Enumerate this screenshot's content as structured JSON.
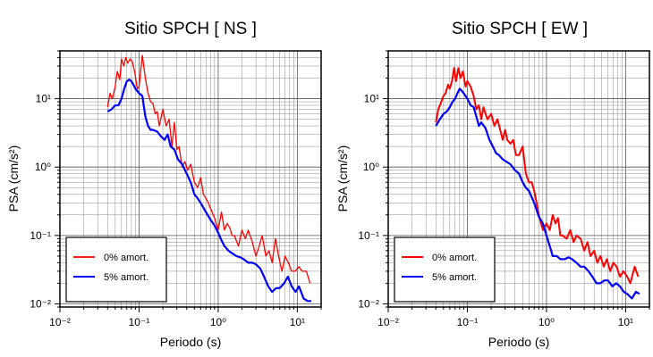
{
  "chart_data": [
    {
      "type": "line",
      "title": "Sitio SPCH [ NS ]",
      "xlabel": "Periodo (s)",
      "ylabel": "PSA (cm/s²)",
      "xscale": "log",
      "yscale": "log",
      "xlim": [
        0.01,
        20
      ],
      "ylim": [
        0.009,
        50
      ],
      "grid": true,
      "legend_position": "bottom-left",
      "x_ticks": [
        "10⁻²",
        "10⁻¹",
        "10⁰",
        "10¹"
      ],
      "y_ticks": [
        "10⁻²",
        "10⁻¹",
        "10⁰",
        "10¹"
      ],
      "series": [
        {
          "name": "0% amort.",
          "color": "#ff0000",
          "x": [
            0.04,
            0.043,
            0.046,
            0.05,
            0.053,
            0.057,
            0.06,
            0.064,
            0.068,
            0.072,
            0.077,
            0.082,
            0.088,
            0.095,
            0.1,
            0.11,
            0.12,
            0.13,
            0.14,
            0.15,
            0.16,
            0.17,
            0.18,
            0.2,
            0.22,
            0.24,
            0.26,
            0.28,
            0.3,
            0.32,
            0.35,
            0.38,
            0.41,
            0.45,
            0.5,
            0.55,
            0.6,
            0.65,
            0.7,
            0.75,
            0.8,
            0.9,
            1.0,
            1.1,
            1.2,
            1.3,
            1.4,
            1.5,
            1.6,
            1.8,
            2.0,
            2.2,
            2.4,
            2.7,
            3.0,
            3.3,
            3.6,
            4.0,
            4.4,
            4.8,
            5.3,
            5.8,
            6.4,
            7.0,
            7.7,
            8.5,
            9.4,
            10.5,
            11.5,
            13.0,
            14.5
          ],
          "y": [
            7.5,
            12,
            10,
            15,
            25,
            19,
            38,
            30,
            40,
            33,
            38,
            35,
            25,
            14,
            15,
            43,
            20,
            12,
            9,
            8.5,
            6,
            6.5,
            4,
            7,
            4,
            5,
            2,
            4.5,
            1.8,
            2,
            1,
            1.2,
            0.9,
            1.1,
            0.6,
            0.5,
            0.7,
            0.4,
            0.35,
            0.3,
            0.25,
            0.18,
            0.12,
            0.22,
            0.12,
            0.15,
            0.13,
            0.1,
            0.1,
            0.07,
            0.12,
            0.09,
            0.12,
            0.08,
            0.05,
            0.07,
            0.1,
            0.05,
            0.06,
            0.04,
            0.09,
            0.05,
            0.03,
            0.05,
            0.04,
            0.03,
            0.03,
            0.035,
            0.03,
            0.03,
            0.02
          ]
        },
        {
          "name": "5% amort.",
          "color": "#0000ff",
          "x": [
            0.04,
            0.045,
            0.05,
            0.055,
            0.06,
            0.065,
            0.07,
            0.075,
            0.08,
            0.085,
            0.09,
            0.1,
            0.11,
            0.12,
            0.13,
            0.14,
            0.15,
            0.17,
            0.19,
            0.21,
            0.23,
            0.25,
            0.28,
            0.31,
            0.35,
            0.4,
            0.45,
            0.5,
            0.55,
            0.6,
            0.7,
            0.8,
            0.9,
            1.0,
            1.1,
            1.2,
            1.35,
            1.5,
            1.7,
            1.9,
            2.1,
            2.4,
            2.7,
            3.0,
            3.4,
            3.8,
            4.3,
            4.8,
            5.4,
            6.0,
            6.8,
            7.6,
            8.5,
            9.5,
            10.5,
            12.0,
            13.5,
            15.0
          ],
          "y": [
            6.5,
            7,
            8,
            8,
            10,
            14,
            18,
            19,
            18,
            16,
            14,
            12,
            11,
            5.5,
            4,
            3.5,
            3.5,
            3.3,
            2.8,
            2.5,
            3,
            2,
            1.8,
            1.3,
            1.1,
            0.8,
            0.6,
            0.4,
            0.35,
            0.3,
            0.22,
            0.17,
            0.14,
            0.11,
            0.085,
            0.07,
            0.06,
            0.055,
            0.05,
            0.048,
            0.045,
            0.04,
            0.04,
            0.038,
            0.033,
            0.025,
            0.018,
            0.015,
            0.017,
            0.017,
            0.02,
            0.025,
            0.018,
            0.015,
            0.018,
            0.012,
            0.011,
            0.011
          ]
        }
      ]
    },
    {
      "type": "line",
      "title": "Sitio SPCH [ EW ]",
      "xlabel": "Periodo (s)",
      "ylabel": "PSA (cm/s²)",
      "xscale": "log",
      "yscale": "log",
      "xlim": [
        0.01,
        20
      ],
      "ylim": [
        0.009,
        50
      ],
      "grid": true,
      "legend_position": "bottom-left",
      "x_ticks": [
        "10⁻²",
        "10⁻¹",
        "10⁰",
        "10¹"
      ],
      "y_ticks": [
        "10⁻²",
        "10⁻¹",
        "10⁰",
        "10¹"
      ],
      "series": [
        {
          "name": "0% amort.",
          "color": "#ff0000",
          "x": [
            0.04,
            0.043,
            0.046,
            0.05,
            0.053,
            0.057,
            0.06,
            0.064,
            0.068,
            0.072,
            0.077,
            0.082,
            0.088,
            0.095,
            0.1,
            0.11,
            0.12,
            0.13,
            0.14,
            0.15,
            0.16,
            0.17,
            0.18,
            0.2,
            0.22,
            0.24,
            0.26,
            0.28,
            0.3,
            0.32,
            0.35,
            0.38,
            0.41,
            0.45,
            0.5,
            0.55,
            0.6,
            0.65,
            0.7,
            0.75,
            0.8,
            0.9,
            1.0,
            1.1,
            1.2,
            1.3,
            1.4,
            1.5,
            1.6,
            1.8,
            2.0,
            2.2,
            2.4,
            2.7,
            3.0,
            3.3,
            3.6,
            4.0,
            4.4,
            4.8,
            5.3,
            5.8,
            6.4,
            7.0,
            7.7,
            8.5,
            9.4,
            10.5,
            11.5,
            13.0,
            14.5
          ],
          "y": [
            4.5,
            7,
            8.5,
            11,
            12,
            16,
            14,
            18,
            28,
            18,
            28,
            20,
            25,
            15,
            18,
            15,
            11,
            7,
            8,
            5,
            7.5,
            6,
            5,
            6,
            4,
            5,
            3.5,
            2.5,
            3.5,
            2.5,
            2.2,
            2.5,
            1.5,
            1.5,
            2,
            0.8,
            0.6,
            0.6,
            0.45,
            0.3,
            0.2,
            0.12,
            0.15,
            0.12,
            0.2,
            0.15,
            0.18,
            0.1,
            0.1,
            0.09,
            0.12,
            0.08,
            0.1,
            0.09,
            0.06,
            0.08,
            0.05,
            0.06,
            0.04,
            0.05,
            0.035,
            0.045,
            0.03,
            0.04,
            0.035,
            0.025,
            0.03,
            0.025,
            0.02,
            0.035,
            0.025
          ]
        },
        {
          "name": "5% amort.",
          "color": "#0000ff",
          "x": [
            0.04,
            0.045,
            0.05,
            0.055,
            0.06,
            0.065,
            0.07,
            0.075,
            0.08,
            0.085,
            0.09,
            0.1,
            0.11,
            0.12,
            0.13,
            0.14,
            0.15,
            0.17,
            0.19,
            0.21,
            0.23,
            0.25,
            0.28,
            0.31,
            0.35,
            0.4,
            0.45,
            0.5,
            0.55,
            0.6,
            0.7,
            0.8,
            0.9,
            1.0,
            1.1,
            1.2,
            1.35,
            1.5,
            1.7,
            1.9,
            2.1,
            2.4,
            2.7,
            3.0,
            3.4,
            3.8,
            4.3,
            4.8,
            5.4,
            6.0,
            6.8,
            7.6,
            8.5,
            9.5,
            10.5,
            12.0,
            13.5,
            15.0
          ],
          "y": [
            4,
            5,
            6,
            6.5,
            7.5,
            9,
            10,
            12,
            14,
            13,
            12,
            10,
            8,
            7.5,
            5.5,
            4,
            4.5,
            3.7,
            2.5,
            2,
            1.6,
            1.5,
            1.3,
            1.2,
            1.1,
            0.9,
            0.8,
            0.6,
            0.5,
            0.45,
            0.3,
            0.19,
            0.15,
            0.1,
            0.07,
            0.05,
            0.05,
            0.045,
            0.045,
            0.048,
            0.045,
            0.04,
            0.035,
            0.035,
            0.03,
            0.025,
            0.02,
            0.02,
            0.022,
            0.022,
            0.018,
            0.02,
            0.018,
            0.015,
            0.014,
            0.012,
            0.015,
            0.014
          ]
        }
      ]
    }
  ]
}
